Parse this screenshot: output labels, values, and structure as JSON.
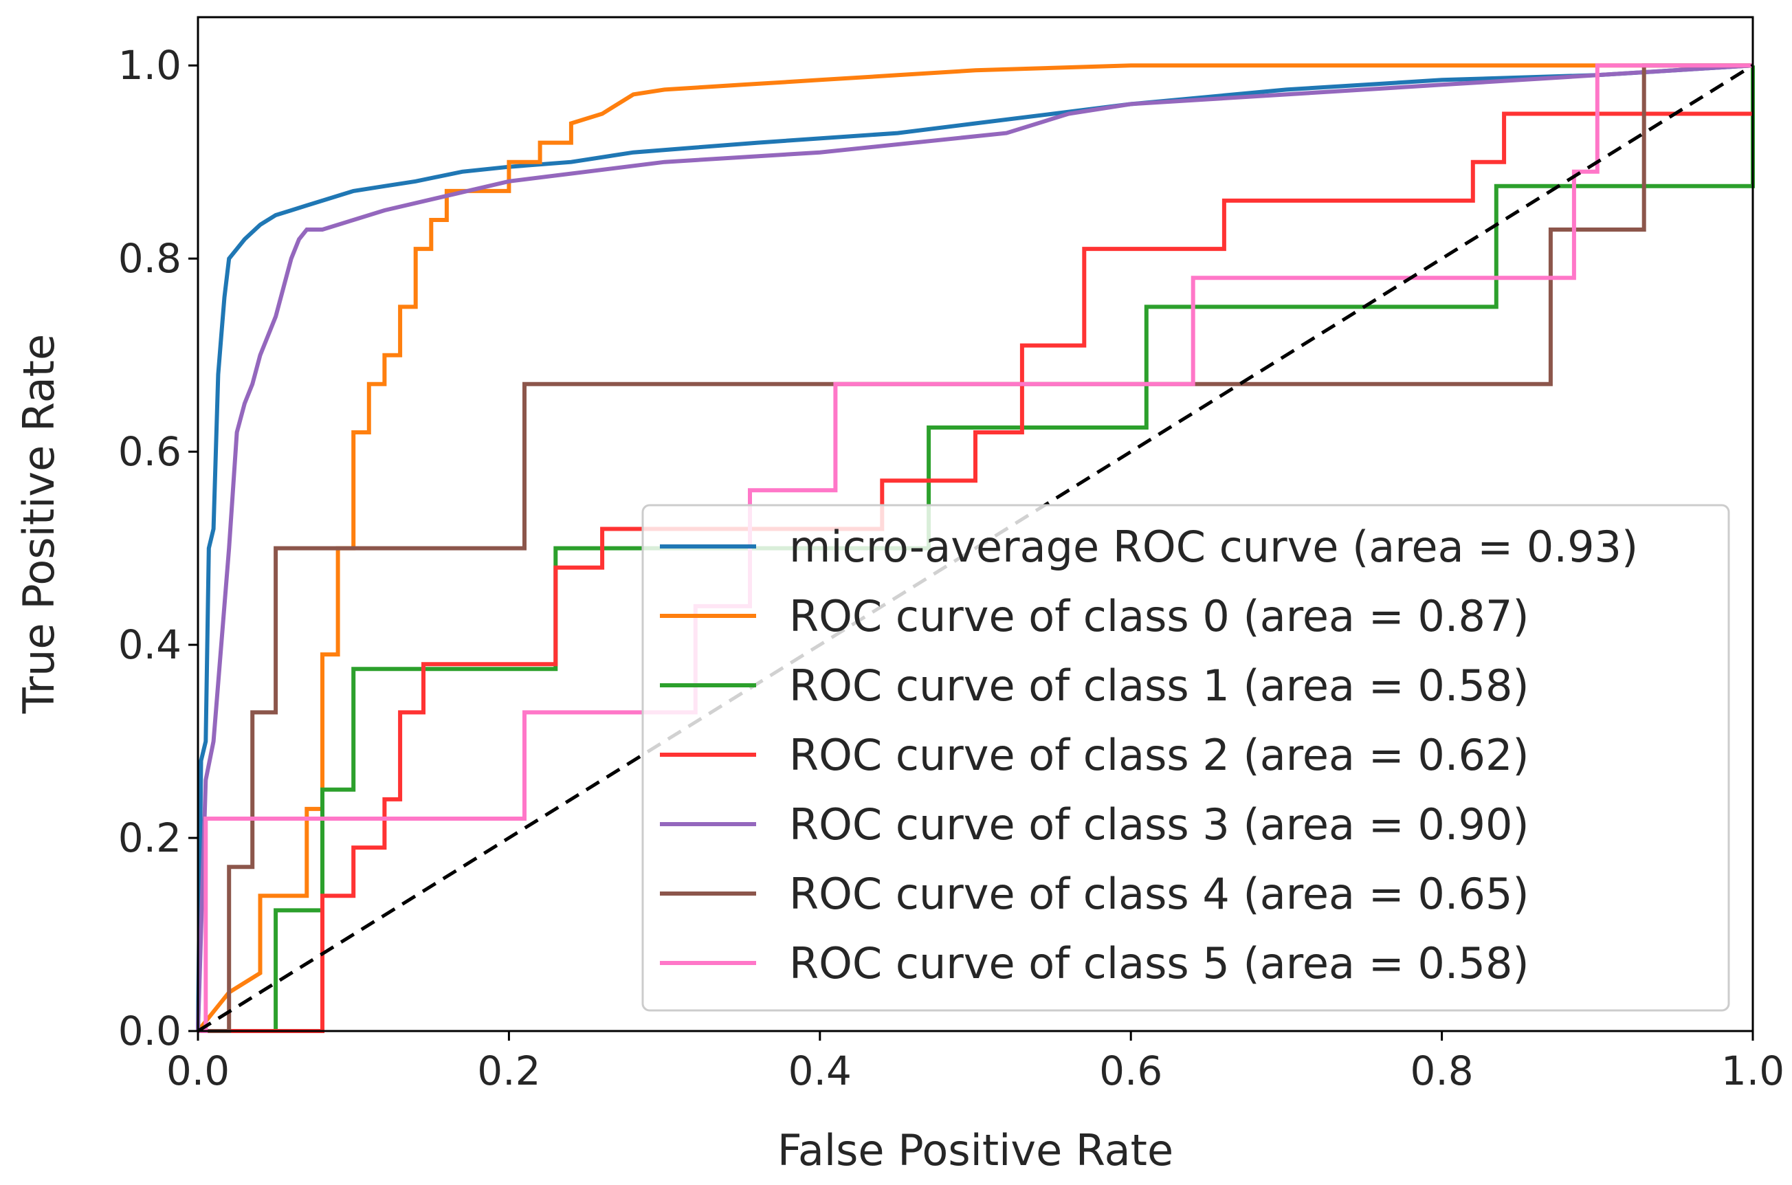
{
  "chart_data": {
    "type": "line",
    "title": "",
    "xlabel": "False Positive Rate",
    "ylabel": "True Positive Rate",
    "xlim": [
      0.0,
      1.0
    ],
    "ylim": [
      0.0,
      1.05
    ],
    "xticks": [
      "0.0",
      "0.2",
      "0.4",
      "0.6",
      "0.8",
      "1.0"
    ],
    "yticks": [
      "0.0",
      "0.2",
      "0.4",
      "0.6",
      "0.8",
      "1.0"
    ],
    "grid": false,
    "legend_position": "lower-right",
    "series": [
      {
        "name": "micro-average ROC curve (area = 0.93)",
        "color": "#1f77b4",
        "x": [
          0,
          0.002,
          0.005,
          0.007,
          0.01,
          0.013,
          0.015,
          0.017,
          0.02,
          0.025,
          0.03,
          0.04,
          0.05,
          0.06,
          0.07,
          0.08,
          0.09,
          0.1,
          0.12,
          0.14,
          0.17,
          0.2,
          0.24,
          0.28,
          0.32,
          0.36,
          0.45,
          0.5,
          0.55,
          0.6,
          0.7,
          0.8,
          0.9,
          0.95,
          1.0
        ],
        "y": [
          0,
          0.28,
          0.3,
          0.5,
          0.52,
          0.68,
          0.72,
          0.76,
          0.8,
          0.81,
          0.82,
          0.835,
          0.845,
          0.85,
          0.855,
          0.86,
          0.865,
          0.87,
          0.875,
          0.88,
          0.89,
          0.895,
          0.9,
          0.91,
          0.915,
          0.92,
          0.93,
          0.94,
          0.95,
          0.96,
          0.975,
          0.985,
          0.99,
          0.995,
          1.0
        ]
      },
      {
        "name": "ROC curve of class 0 (area = 0.87)",
        "color": "#ff7f0e",
        "x": [
          0,
          0.02,
          0.04,
          0.04,
          0.07,
          0.07,
          0.08,
          0.08,
          0.09,
          0.09,
          0.1,
          0.1,
          0.11,
          0.11,
          0.12,
          0.12,
          0.13,
          0.13,
          0.14,
          0.14,
          0.15,
          0.15,
          0.16,
          0.16,
          0.2,
          0.2,
          0.22,
          0.22,
          0.24,
          0.24,
          0.26,
          0.27,
          0.28,
          0.3,
          0.35,
          0.4,
          0.45,
          0.5,
          0.6,
          0.8,
          1.0
        ],
        "y": [
          0,
          0.04,
          0.06,
          0.14,
          0.14,
          0.23,
          0.23,
          0.39,
          0.39,
          0.5,
          0.5,
          0.62,
          0.62,
          0.67,
          0.67,
          0.7,
          0.7,
          0.75,
          0.75,
          0.81,
          0.81,
          0.84,
          0.84,
          0.87,
          0.87,
          0.9,
          0.9,
          0.92,
          0.92,
          0.94,
          0.95,
          0.96,
          0.97,
          0.975,
          0.98,
          0.985,
          0.99,
          0.995,
          1.0,
          1.0,
          1.0
        ]
      },
      {
        "name": "ROC curve of class 1 (area = 0.58)",
        "color": "#2ca02c",
        "x": [
          0,
          0.05,
          0.05,
          0.08,
          0.08,
          0.1,
          0.1,
          0.23,
          0.23,
          0.47,
          0.47,
          0.61,
          0.61,
          0.835,
          0.835,
          1.0,
          1.0
        ],
        "y": [
          0,
          0,
          0.125,
          0.125,
          0.25,
          0.25,
          0.375,
          0.375,
          0.5,
          0.5,
          0.625,
          0.625,
          0.75,
          0.75,
          0.875,
          0.875,
          1.0
        ]
      },
      {
        "name": "ROC curve of class 2 (area = 0.62)",
        "color": "#ff3333",
        "x": [
          0,
          0.08,
          0.08,
          0.1,
          0.1,
          0.12,
          0.12,
          0.13,
          0.13,
          0.145,
          0.145,
          0.23,
          0.23,
          0.26,
          0.26,
          0.44,
          0.44,
          0.5,
          0.5,
          0.53,
          0.53,
          0.57,
          0.57,
          0.66,
          0.66,
          0.82,
          0.82,
          0.84,
          0.84,
          1.0
        ],
        "y": [
          0,
          0,
          0.14,
          0.14,
          0.19,
          0.19,
          0.24,
          0.24,
          0.33,
          0.33,
          0.38,
          0.38,
          0.48,
          0.48,
          0.52,
          0.52,
          0.57,
          0.57,
          0.62,
          0.62,
          0.71,
          0.71,
          0.81,
          0.81,
          0.86,
          0.86,
          0.9,
          0.9,
          0.95,
          0.95
        ]
      },
      {
        "name": "ROC curve of class 3 (area = 0.90)",
        "color": "#9467bd",
        "x": [
          0,
          0.005,
          0.01,
          0.015,
          0.02,
          0.025,
          0.03,
          0.035,
          0.04,
          0.045,
          0.05,
          0.055,
          0.06,
          0.065,
          0.07,
          0.08,
          0.1,
          0.12,
          0.2,
          0.3,
          0.4,
          0.52,
          0.56,
          0.6,
          0.65,
          0.7,
          0.8,
          0.9,
          1.0
        ],
        "y": [
          0,
          0.26,
          0.3,
          0.4,
          0.5,
          0.62,
          0.65,
          0.67,
          0.7,
          0.72,
          0.74,
          0.77,
          0.8,
          0.82,
          0.83,
          0.83,
          0.84,
          0.85,
          0.88,
          0.9,
          0.91,
          0.93,
          0.95,
          0.96,
          0.965,
          0.97,
          0.98,
          0.99,
          1.0
        ]
      },
      {
        "name": "ROC curve of class 4 (area = 0.65)",
        "color": "#8c564b",
        "x": [
          0,
          0.02,
          0.02,
          0.035,
          0.035,
          0.05,
          0.05,
          0.21,
          0.21,
          0.87,
          0.87,
          0.93,
          0.93,
          1.0
        ],
        "y": [
          0,
          0,
          0.17,
          0.17,
          0.33,
          0.33,
          0.5,
          0.5,
          0.67,
          0.67,
          0.83,
          0.83,
          1.0,
          1.0
        ]
      },
      {
        "name": "ROC curve of class 5 (area = 0.58)",
        "color": "#ff77c8",
        "x": [
          0,
          0.005,
          0.005,
          0.21,
          0.21,
          0.32,
          0.32,
          0.355,
          0.355,
          0.41,
          0.41,
          0.64,
          0.64,
          0.885,
          0.885,
          0.9,
          0.9,
          1.0
        ],
        "y": [
          0,
          0.0,
          0.22,
          0.22,
          0.33,
          0.33,
          0.44,
          0.44,
          0.56,
          0.56,
          0.67,
          0.67,
          0.78,
          0.78,
          0.89,
          0.89,
          1.0,
          1.0
        ]
      }
    ],
    "reference_line": {
      "name": "chance",
      "color": "#000000",
      "style": "dashed",
      "x": [
        0,
        1
      ],
      "y": [
        0,
        1
      ]
    }
  }
}
